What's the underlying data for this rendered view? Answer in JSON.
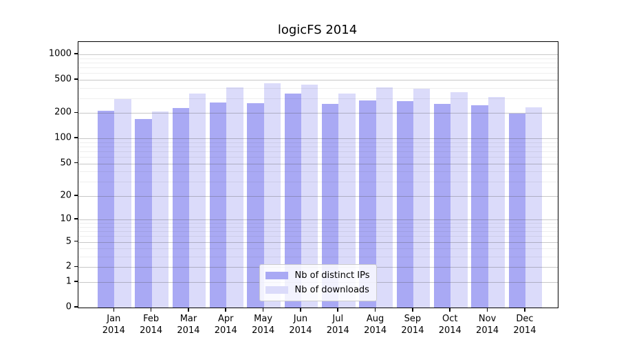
{
  "title": "logicFS 2014",
  "chart_data": {
    "type": "bar",
    "title": "logicFS 2014",
    "yscale": "log1p",
    "grid": true,
    "legend_position": "lower center",
    "categories": [
      "Jan",
      "Feb",
      "Mar",
      "Apr",
      "May",
      "Jun",
      "Jul",
      "Aug",
      "Sep",
      "Oct",
      "Nov",
      "Dec"
    ],
    "year_label": "2014",
    "series": [
      {
        "name": "Nb of distinct IPs",
        "color": "#a9a9f4",
        "values": [
          212,
          171,
          231,
          270,
          262,
          344,
          259,
          285,
          278,
          256,
          250,
          197
        ]
      },
      {
        "name": "Nb of downloads",
        "color": "#dbdbfa",
        "values": [
          292,
          210,
          339,
          407,
          455,
          437,
          345,
          407,
          390,
          355,
          313,
          236
        ]
      }
    ],
    "yticks": [
      0,
      1,
      2,
      5,
      10,
      20,
      50,
      100,
      200,
      500,
      1000
    ],
    "ylim": [
      0,
      1400
    ],
    "xlabel": "",
    "ylabel": "",
    "colors": {
      "axis": "#000000",
      "background": "#ffffff",
      "major_grid": "#b8b8b8",
      "minor_grid": "#ededed"
    }
  }
}
